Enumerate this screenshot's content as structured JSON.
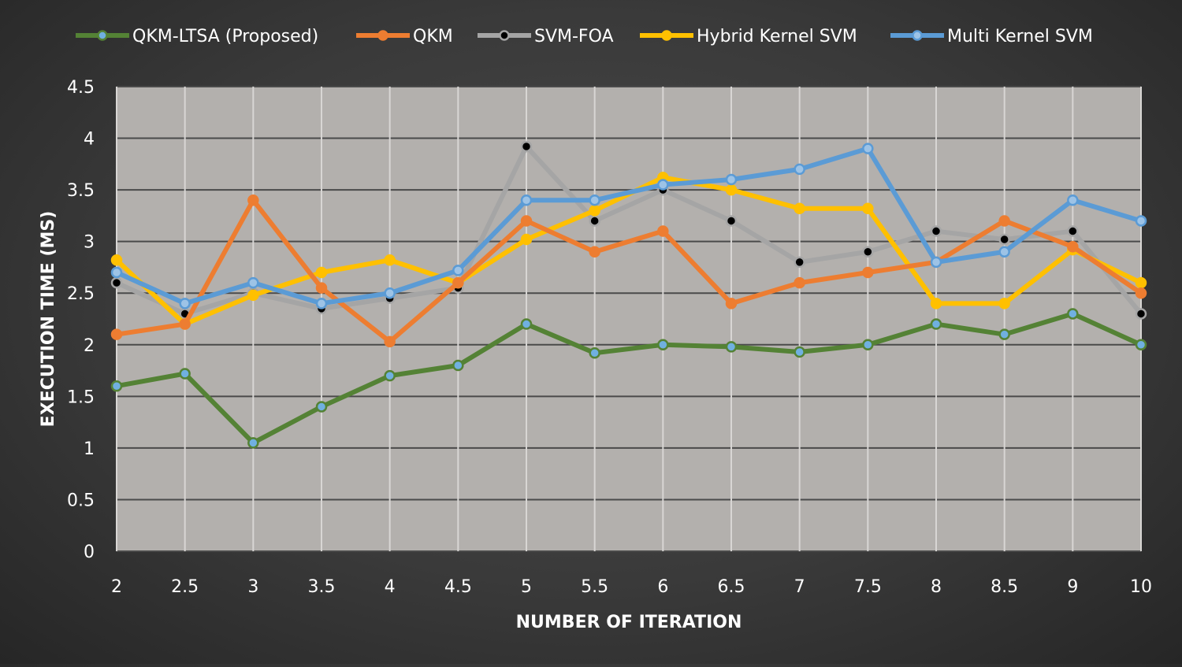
{
  "chart_data": {
    "type": "line",
    "title": "",
    "xlabel": "NUMBER OF ITERATION",
    "ylabel": "EXECUTION TIME (MS)",
    "x": [
      "2",
      "2.5",
      "3",
      "3.5",
      "4",
      "4.5",
      "5",
      "5.5",
      "6",
      "6.5",
      "7",
      "7.5",
      "8",
      "8.5",
      "9",
      "10"
    ],
    "yticks": [
      "0",
      "0.5",
      "1",
      "1.5",
      "2",
      "2.5",
      "3",
      "3.5",
      "4",
      "4.5"
    ],
    "ylim": [
      0,
      4.5
    ],
    "grid": true,
    "legend_position": "top",
    "series": [
      {
        "name": "QKM-LTSA (Proposed)",
        "color": "#548235",
        "marker_fill": "#70b0e0",
        "values": [
          1.6,
          1.72,
          1.05,
          1.4,
          1.7,
          1.8,
          2.2,
          1.92,
          2.0,
          1.98,
          1.93,
          2.0,
          2.2,
          2.1,
          2.3,
          2.0
        ]
      },
      {
        "name": "QKM",
        "color": "#ed7d31",
        "marker_fill": "#ed7d31",
        "values": [
          2.1,
          2.2,
          3.4,
          2.55,
          2.03,
          2.6,
          3.2,
          2.9,
          3.1,
          2.4,
          2.6,
          2.7,
          2.8,
          3.2,
          2.95,
          2.5
        ]
      },
      {
        "name": "SVM-FOA",
        "color": "#a5a5a5",
        "marker_fill": "#000000",
        "values": [
          2.6,
          2.3,
          2.5,
          2.35,
          2.45,
          2.55,
          3.92,
          3.2,
          3.5,
          3.2,
          2.8,
          2.9,
          3.1,
          3.02,
          3.1,
          2.3
        ]
      },
      {
        "name": "Hybrid Kernel SVM",
        "color": "#ffc000",
        "marker_fill": "#ffc000",
        "values": [
          2.82,
          2.2,
          2.48,
          2.7,
          2.82,
          2.6,
          3.02,
          3.3,
          3.62,
          3.5,
          3.32,
          3.32,
          2.4,
          2.4,
          2.92,
          2.6
        ]
      },
      {
        "name": "Multi Kernel SVM",
        "color": "#5b9bd5",
        "marker_fill": "#9dc3e6",
        "values": [
          2.7,
          2.4,
          2.6,
          2.4,
          2.5,
          2.72,
          3.4,
          3.4,
          3.55,
          3.6,
          3.7,
          3.9,
          2.8,
          2.9,
          3.4,
          3.2
        ]
      }
    ]
  }
}
